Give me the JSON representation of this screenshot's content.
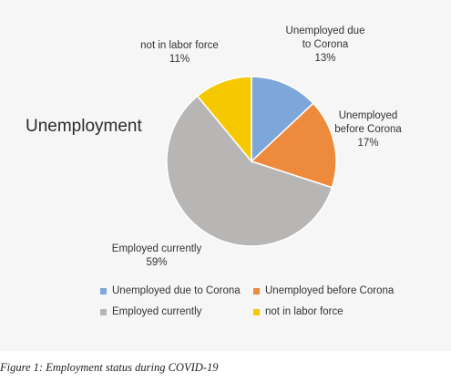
{
  "chart_data": {
    "type": "pie",
    "title": "Unemployment",
    "slices": [
      {
        "label": "Unemployed due to Corona",
        "value": 13,
        "value_label": "13%",
        "color": "#7da7d9"
      },
      {
        "label": "Unemployed before Corona",
        "value": 17,
        "value_label": "17%",
        "color": "#ee8a3c"
      },
      {
        "label": "Employed currently",
        "value": 59,
        "value_label": "59%",
        "color": "#b8b6b4"
      },
      {
        "label": "not in labor force",
        "value": 11,
        "value_label": "11%",
        "color": "#f5c800"
      }
    ],
    "legend_position": "bottom"
  },
  "slice_labels": [
    {
      "lines": [
        "Unemployed due",
        "to Corona"
      ],
      "pct": "13%"
    },
    {
      "lines": [
        "Unemployed",
        "before Corona"
      ],
      "pct": "17%"
    },
    {
      "lines": [
        "Employed currently"
      ],
      "pct": "59%"
    },
    {
      "lines": [
        "not in labor force"
      ],
      "pct": "11%"
    }
  ],
  "caption": "Figure 1: Employment status during COVID-19"
}
